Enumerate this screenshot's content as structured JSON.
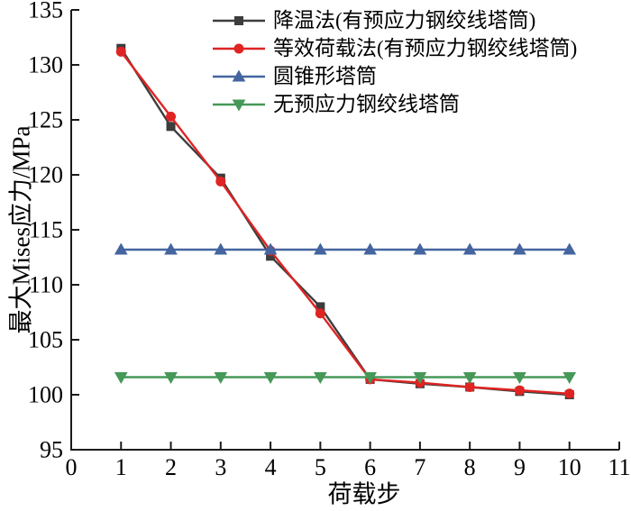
{
  "figure": {
    "background": "#ffffff",
    "axis_color": "#1a1a1a",
    "text_color": "#000000"
  },
  "chart_data": {
    "type": "line",
    "title": "",
    "xlabel": "荷载步",
    "ylabel": "最大Mises应力/MPa",
    "xlim": [
      0,
      11
    ],
    "ylim": [
      95,
      135
    ],
    "x_ticks": [
      0,
      1,
      2,
      3,
      4,
      5,
      6,
      7,
      8,
      9,
      10,
      11
    ],
    "y_ticks": [
      95,
      100,
      105,
      110,
      115,
      120,
      125,
      130,
      135
    ],
    "grid": false,
    "legend_position": "top-inside",
    "x": [
      1,
      2,
      3,
      4,
      5,
      6,
      7,
      8,
      9,
      10
    ],
    "series": [
      {
        "name": "降温法(有预应力钢绞线塔筒)",
        "color": "#3d3d3d",
        "marker": "square",
        "values": [
          131.5,
          124.4,
          119.7,
          112.6,
          108.0,
          101.4,
          101.0,
          100.7,
          100.3,
          100.0
        ]
      },
      {
        "name": "等效荷载法(有预应力钢绞线塔筒)",
        "color": "#df2423",
        "marker": "circle",
        "values": [
          131.2,
          125.3,
          119.4,
          113.1,
          107.4,
          101.4,
          101.1,
          100.7,
          100.4,
          100.1
        ]
      },
      {
        "name": "圆锥形塔筒",
        "color": "#4565a0",
        "marker": "triangle-up",
        "values": [
          113.2,
          113.2,
          113.2,
          113.2,
          113.2,
          113.2,
          113.2,
          113.2,
          113.2,
          113.2
        ]
      },
      {
        "name": "无预应力钢绞线塔筒",
        "color": "#459858",
        "marker": "triangle-down",
        "values": [
          101.6,
          101.6,
          101.6,
          101.6,
          101.6,
          101.6,
          101.6,
          101.6,
          101.6,
          101.6
        ]
      }
    ]
  }
}
